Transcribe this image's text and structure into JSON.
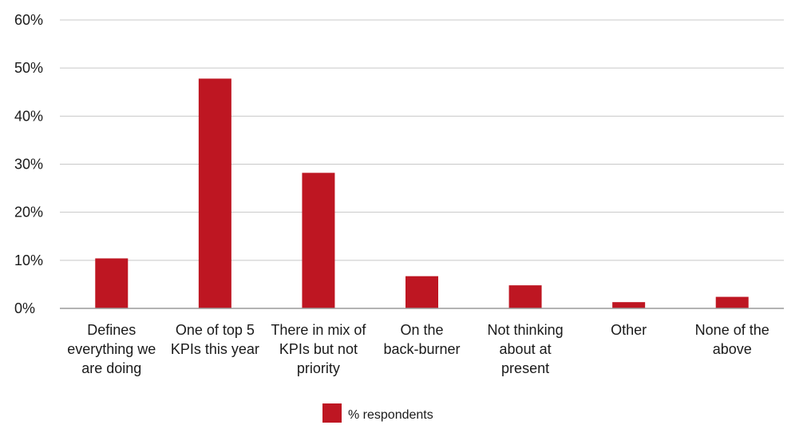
{
  "chart_data": {
    "type": "bar",
    "categories": [
      [
        "Defines",
        "everything we",
        "are doing"
      ],
      [
        "One of top 5",
        "KPIs this year"
      ],
      [
        "There in mix of",
        "KPIs but not",
        "priority"
      ],
      [
        "On the",
        "back-burner"
      ],
      [
        "Not thinking",
        "about at",
        "present"
      ],
      [
        "Other"
      ],
      [
        "None of the",
        "above"
      ]
    ],
    "series": [
      {
        "name": "% respondents",
        "values": [
          10.4,
          47.8,
          28.2,
          6.7,
          4.8,
          1.3,
          2.4
        ],
        "color": "#be1622"
      }
    ],
    "ylim": [
      0,
      60
    ],
    "yticks": [
      0,
      10,
      20,
      30,
      40,
      50,
      60
    ],
    "ytick_labels": [
      "0%",
      "10%",
      "20%",
      "30%",
      "40%",
      "50%",
      "60%"
    ],
    "grid": true,
    "legend": "bottom-center",
    "colors": {
      "bar": "#be1622",
      "grid": "#c8c8c8",
      "axis": "#9a9a9a",
      "text": "#1a1a1a"
    }
  }
}
